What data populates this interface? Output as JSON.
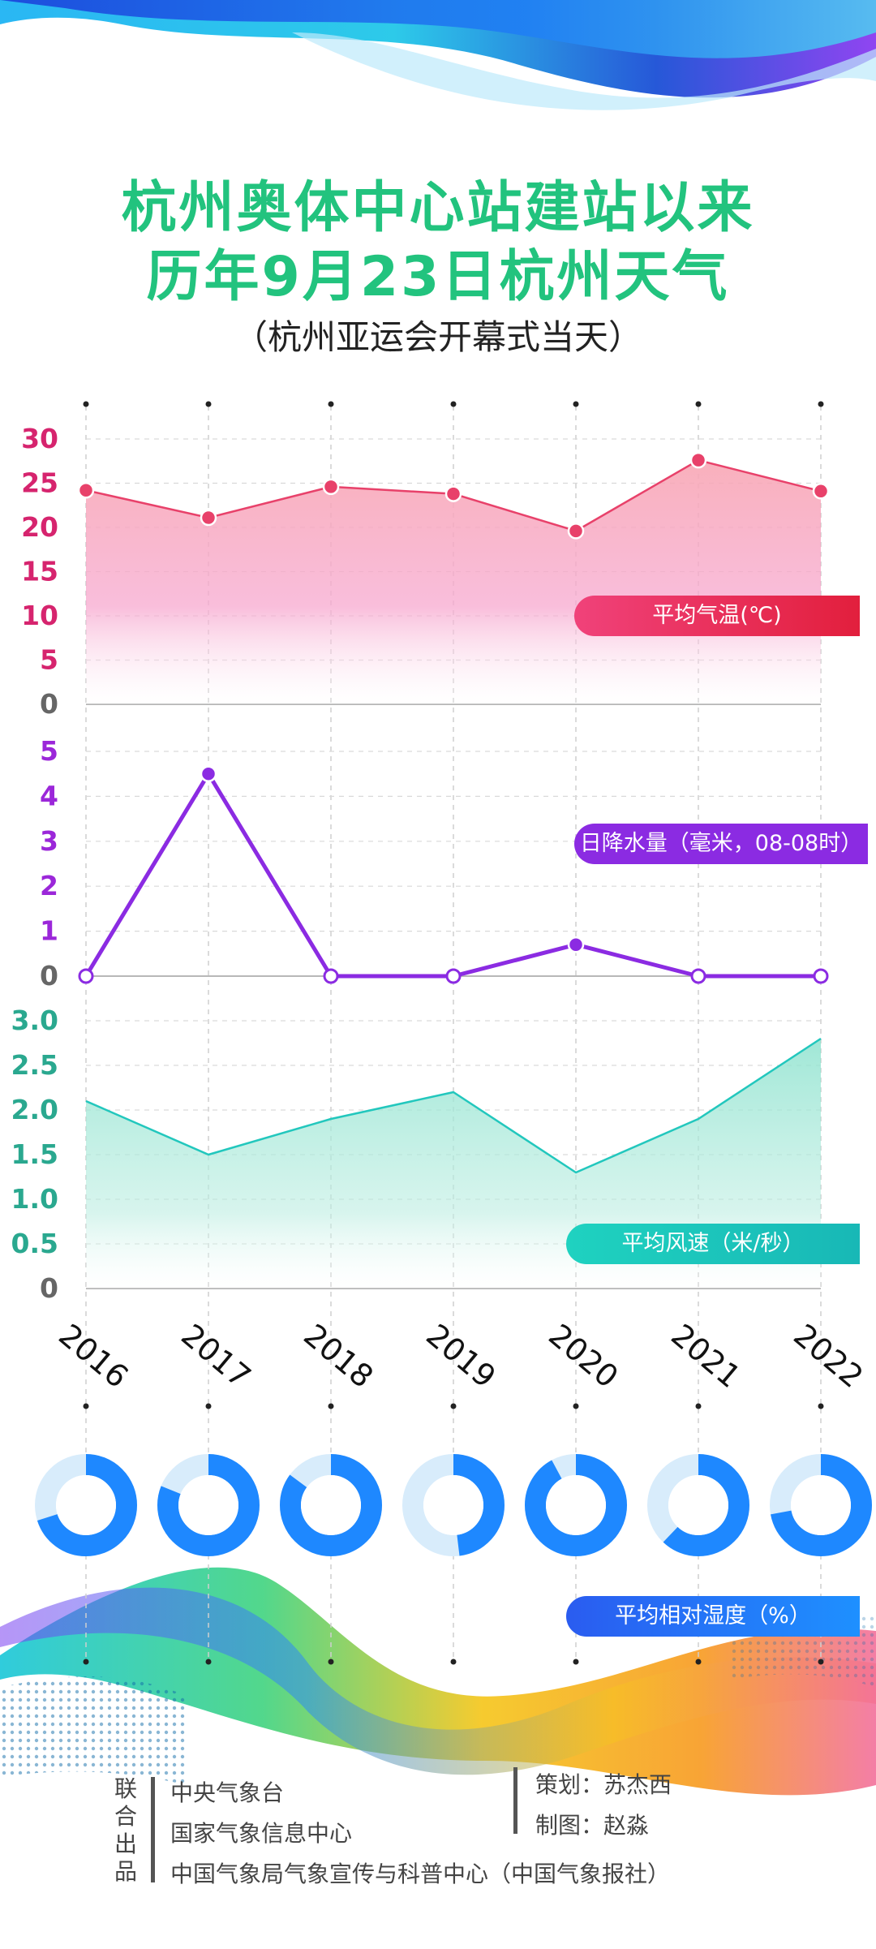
{
  "header": {
    "title_line1": "杭州奥体中心站建站以来",
    "title_line2": "历年9月23日杭州天气",
    "subtitle": "（杭州亚运会开幕式当天）"
  },
  "labels": {
    "temperature": "平均气温(℃)",
    "precipitation": "日降水量（毫米，08-08时）",
    "wind": "平均风速（米/秒）",
    "humidity": "平均相对湿度（%）"
  },
  "credits": {
    "joint": [
      "联",
      "合",
      "出",
      "品"
    ],
    "orgs": [
      "中央气象台",
      "国家气象信息中心",
      "中国气象局气象宣传与科普中心（中国气象报社）"
    ],
    "planning": "策划：苏杰西",
    "design": "制图：赵淼"
  },
  "colors": {
    "title_green": "#22c37e",
    "temp": "#e8416a",
    "temp_axis": "#d6246e",
    "precip": "#8b2be2",
    "precip_axis": "#9b27d9",
    "wind": "#22c7bd",
    "wind_axis": "#2aa88f",
    "humidity": "#1e88ff",
    "humidity_light": "#d8ecfb"
  },
  "chart_data": [
    {
      "type": "area",
      "name": "temperature",
      "x": [
        "2016",
        "2017",
        "2018",
        "2019",
        "2020",
        "2021",
        "2022"
      ],
      "y": [
        24.2,
        21.1,
        24.6,
        23.8,
        19.6,
        27.6,
        24.1
      ],
      "yticks": [
        "30",
        "25",
        "20",
        "15",
        "10",
        "5",
        "0"
      ],
      "ylim": [
        0,
        30
      ],
      "grid": true
    },
    {
      "type": "line",
      "name": "precipitation",
      "x": [
        "2016",
        "2017",
        "2018",
        "2019",
        "2020",
        "2021",
        "2022"
      ],
      "y": [
        0,
        4.5,
        0,
        0,
        0.7,
        0,
        0
      ],
      "yticks": [
        "5",
        "4",
        "3",
        "2",
        "1",
        "0"
      ],
      "ylim": [
        0,
        5
      ],
      "grid": true
    },
    {
      "type": "area",
      "name": "wind",
      "x": [
        "2016",
        "2017",
        "2018",
        "2019",
        "2020",
        "2021",
        "2022"
      ],
      "y": [
        2.1,
        1.5,
        1.9,
        2.2,
        1.3,
        1.9,
        2.8
      ],
      "yticks": [
        "3.0",
        "2.5",
        "2.0",
        "1.5",
        "1.0",
        "0.5",
        "0"
      ],
      "ylim": [
        0,
        3
      ],
      "grid": true
    },
    {
      "type": "pie",
      "name": "humidity",
      "x": [
        "2016",
        "2017",
        "2018",
        "2019",
        "2020",
        "2021",
        "2022"
      ],
      "y": [
        70,
        81,
        85,
        48,
        92,
        62,
        72
      ]
    }
  ],
  "x_axis_labels": [
    "2016",
    "2017",
    "2018",
    "2019",
    "2020",
    "2021",
    "2022"
  ]
}
